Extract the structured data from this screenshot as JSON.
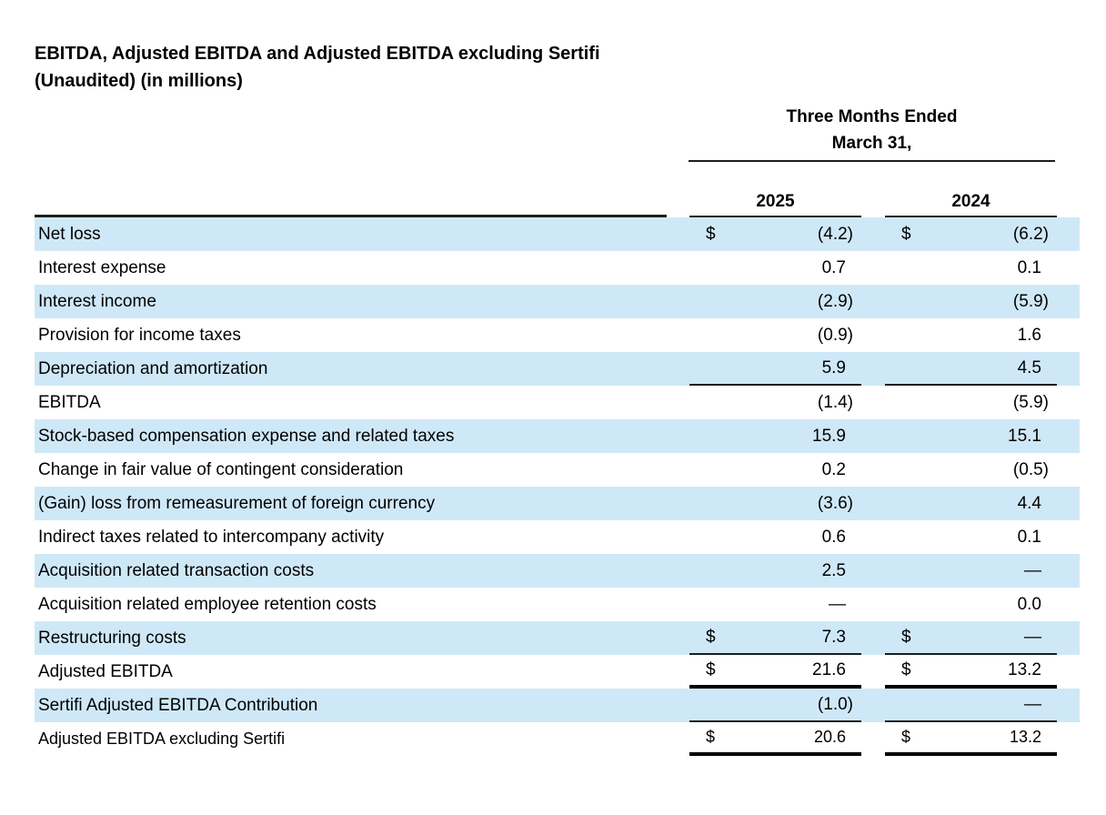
{
  "title": {
    "line1": "EBITDA, Adjusted EBITDA and Adjusted EBITDA excluding Sertifi",
    "line2": "(Unaudited) (in millions)"
  },
  "table": {
    "period_header": {
      "line1": "Three Months Ended",
      "line2": "March 31,"
    },
    "columns": [
      "2025",
      "2024"
    ],
    "currency_symbol": "$",
    "rows": [
      {
        "label": "Net loss",
        "dollar": true,
        "values": [
          "(4.2)",
          "(6.2)"
        ],
        "rule": "none"
      },
      {
        "label": "Interest expense",
        "dollar": false,
        "values": [
          "0.7",
          "0.1"
        ],
        "rule": "none"
      },
      {
        "label": "Interest income",
        "dollar": false,
        "values": [
          "(2.9)",
          "(5.9)"
        ],
        "rule": "none"
      },
      {
        "label": "Provision for income taxes",
        "dollar": false,
        "values": [
          "(0.9)",
          "1.6"
        ],
        "rule": "none"
      },
      {
        "label": "Depreciation and amortization",
        "dollar": false,
        "values": [
          "5.9",
          "4.5"
        ],
        "rule": "thin"
      },
      {
        "label": "EBITDA",
        "dollar": false,
        "values": [
          "(1.4)",
          "(5.9)"
        ],
        "rule": "none"
      },
      {
        "label": "Stock-based compensation expense and related taxes",
        "dollar": false,
        "values": [
          "15.9",
          "15.1"
        ],
        "rule": "none"
      },
      {
        "label": "Change in fair value of contingent consideration",
        "dollar": false,
        "values": [
          "0.2",
          "(0.5)"
        ],
        "rule": "none"
      },
      {
        "label": "(Gain) loss from remeasurement of foreign currency",
        "dollar": false,
        "values": [
          "(3.6)",
          "4.4"
        ],
        "rule": "none"
      },
      {
        "label": "Indirect taxes related to intercompany activity",
        "dollar": false,
        "values": [
          "0.6",
          "0.1"
        ],
        "rule": "none"
      },
      {
        "label": "Acquisition related transaction costs",
        "dollar": false,
        "values": [
          "2.5",
          "—"
        ],
        "rule": "none"
      },
      {
        "label": "Acquisition related employee retention costs",
        "dollar": false,
        "values": [
          "—",
          "0.0"
        ],
        "rule": "none"
      },
      {
        "label": "Restructuring costs",
        "dollar": true,
        "values": [
          "7.3",
          "—"
        ],
        "rule": "thin"
      },
      {
        "label": "Adjusted EBITDA",
        "dollar": true,
        "values": [
          "21.6",
          "13.2"
        ],
        "rule": "thick"
      },
      {
        "label": "Sertifi Adjusted EBITDA Contribution",
        "dollar": false,
        "values": [
          "(1.0)",
          "—"
        ],
        "rule": "thin"
      },
      {
        "label": "Adjusted EBITDA excluding Sertifi",
        "dollar": true,
        "values": [
          "20.6",
          "13.2"
        ],
        "rule": "thick"
      }
    ]
  },
  "colors": {
    "row_highlight": "#cfe8f7",
    "rule": "#1d1d1d",
    "text": "#000000"
  }
}
